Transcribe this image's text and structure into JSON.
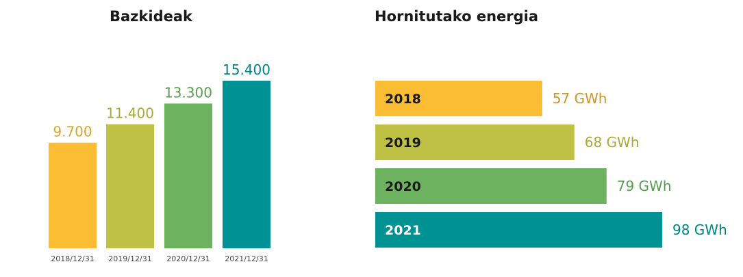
{
  "chart_data": [
    {
      "type": "bar",
      "orientation": "vertical",
      "title": "Bazkideak",
      "categories": [
        "2018/12/31",
        "2019/12/31",
        "2020/12/31",
        "2021/12/31"
      ],
      "values": [
        9700,
        11400,
        13300,
        15400
      ],
      "value_labels": [
        "9.700",
        "11.400",
        "13.300",
        "15.400"
      ],
      "colors": [
        "#fbbd34",
        "#bfc144",
        "#6db35f",
        "#009192"
      ],
      "label_colors": [
        "#dba32c",
        "#a9a93a",
        "#5a9c53",
        "#008385"
      ],
      "ylim": [
        0,
        15400
      ],
      "grid": false,
      "legend": "none"
    },
    {
      "type": "bar",
      "orientation": "horizontal",
      "title": "Hornitutako energia",
      "categories": [
        "2018",
        "2019",
        "2020",
        "2021"
      ],
      "values": [
        57,
        68,
        79,
        98
      ],
      "value_labels": [
        "57 GWh",
        "68 GWh",
        "79 GWh",
        "98 GWh"
      ],
      "colors": [
        "#fbbd34",
        "#bfc144",
        "#6db35f",
        "#009192"
      ],
      "label_colors": [
        "#c9972a",
        "#a9a93a",
        "#5a9c53",
        "#008385"
      ],
      "category_label_colors": [
        "#1a1a1a",
        "#1a1a1a",
        "#1a1a1a",
        "#ffffff"
      ],
      "xlim": [
        0,
        98
      ],
      "grid": false,
      "legend": "none"
    }
  ]
}
